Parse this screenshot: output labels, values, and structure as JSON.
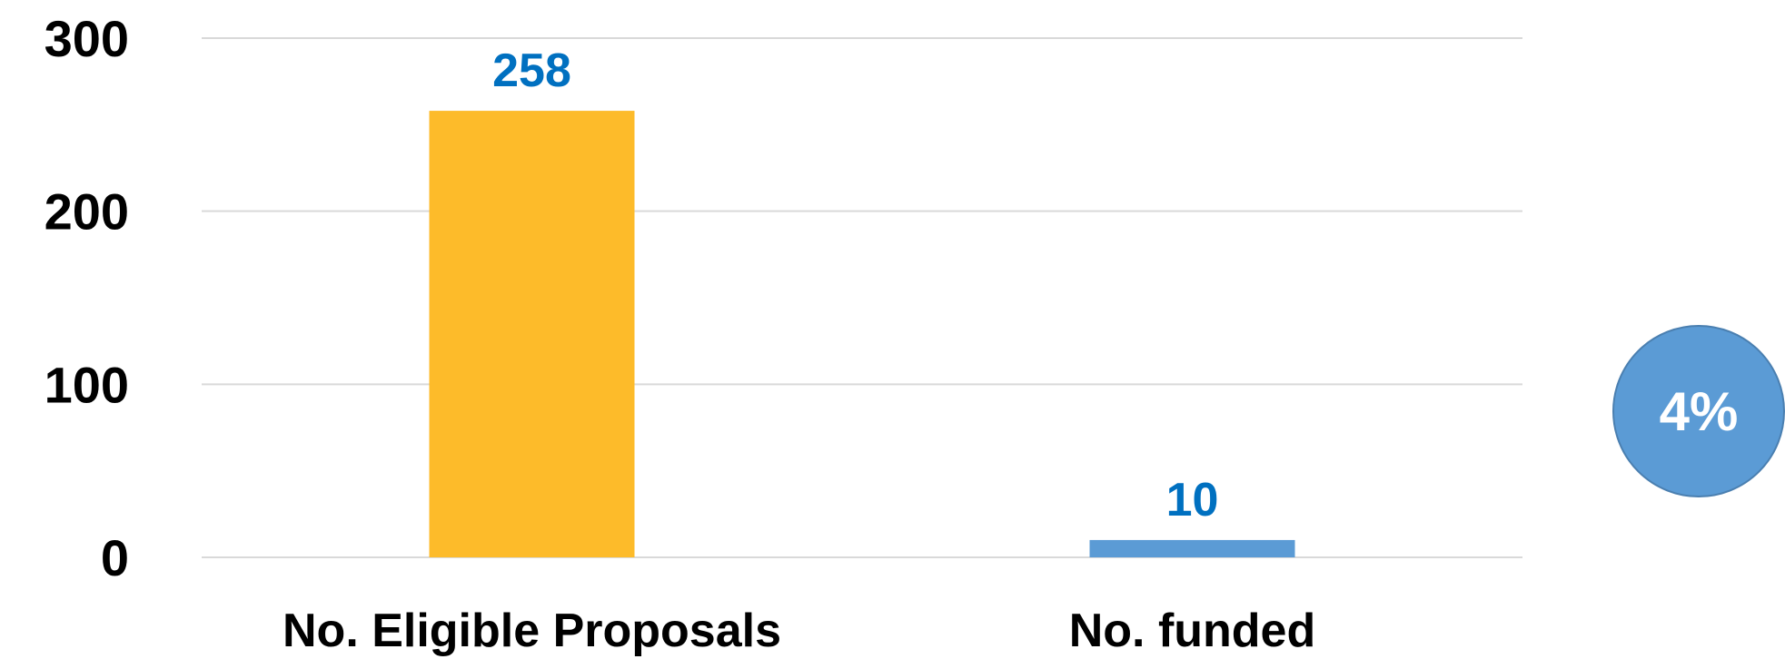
{
  "chart_data": {
    "type": "bar",
    "categories": [
      "No. Eligible Proposals",
      "No. funded"
    ],
    "values": [
      258,
      10
    ],
    "data_labels": [
      "258",
      "10"
    ],
    "colors": [
      "#FDBB2A",
      "#5B9BD5"
    ],
    "ylim": [
      0,
      300
    ],
    "yticks": [
      0,
      100,
      200,
      300
    ],
    "ytick_labels": [
      "0",
      "100",
      "200",
      "300"
    ],
    "grid": true,
    "legend": "none",
    "title": "",
    "xlabel": "",
    "ylabel": ""
  },
  "badge": {
    "text": "4%",
    "color": "#5B9BD5"
  },
  "colors": {
    "data_label": "#0070C0",
    "gridline": "#D9D9D9",
    "axis_text": "#000000"
  }
}
